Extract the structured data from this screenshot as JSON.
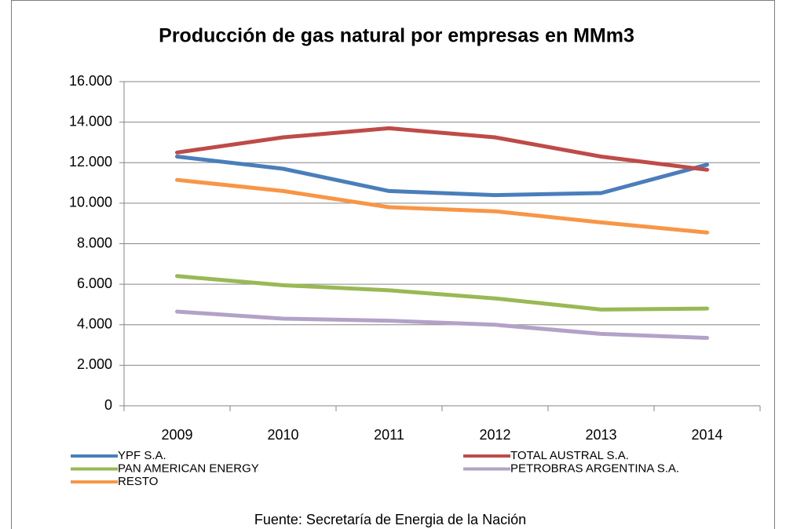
{
  "chart_data": {
    "type": "line",
    "title": "Producción de gas natural por empresas en MMm3",
    "source": "Fuente: Secretaría de Energia de la Nación",
    "categories": [
      "2009",
      "2010",
      "2011",
      "2012",
      "2013",
      "2014"
    ],
    "series": [
      {
        "name": "YPF S.A.",
        "color": "#4a7ebb",
        "values": [
          12300,
          11700,
          10600,
          10400,
          10500,
          11900
        ]
      },
      {
        "name": "TOTAL AUSTRAL S.A.",
        "color": "#be4b48",
        "values": [
          12500,
          13250,
          13700,
          13250,
          12300,
          11650
        ]
      },
      {
        "name": "PAN AMERICAN ENERGY",
        "color": "#98b954",
        "values": [
          6400,
          5950,
          5700,
          5300,
          4750,
          4800
        ]
      },
      {
        "name": "PETROBRAS ARGENTINA S.A.",
        "color": "#b3a2c7",
        "values": [
          4650,
          4300,
          4200,
          4000,
          3550,
          3350
        ]
      },
      {
        "name": "RESTO",
        "color": "#f79646",
        "values": [
          11150,
          10600,
          9800,
          9600,
          9050,
          8550
        ]
      }
    ],
    "ylim": [
      0,
      16000
    ],
    "yticks": [
      0,
      {
        "value": 2000,
        "label": "2.000"
      },
      {
        "value": 4000,
        "label": "4.000"
      },
      {
        "value": 6000,
        "label": "6.000"
      },
      {
        "value": 8000,
        "label": "8.000"
      },
      {
        "value": 10000,
        "label": "10.000"
      },
      {
        "value": 12000,
        "label": "12.000"
      },
      {
        "value": 14000,
        "label": "14.000"
      },
      {
        "value": 16000,
        "label": "16.000"
      }
    ],
    "grid": true
  }
}
